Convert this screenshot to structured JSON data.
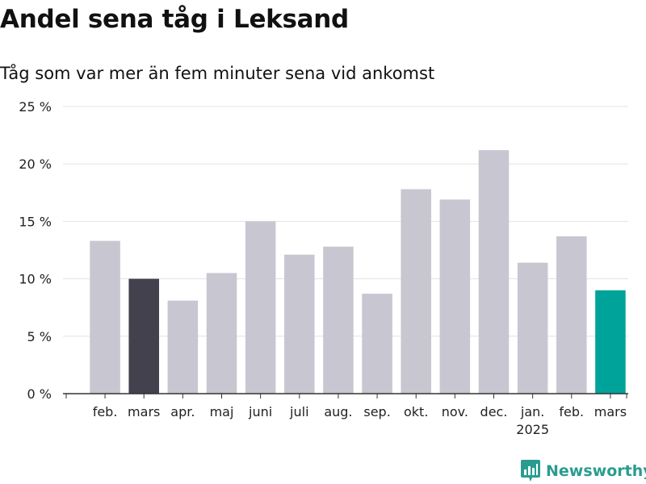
{
  "header": {
    "title": "Andel sena tåg i Leksand",
    "subtitle": "Tåg som var mer än fem minuter sena vid ankomst"
  },
  "logo": {
    "text": "Newsworthy",
    "icon": "newsworthy-chart-icon"
  },
  "colors": {
    "bar_default": "#c8c7d1",
    "bar_first_highlight": "#43414d",
    "bar_last_highlight": "#00a39a",
    "gridline": "#e3e3e3",
    "axis": "#333333",
    "brand": "#2a9c8f"
  },
  "chart_data": {
    "type": "bar",
    "categories": [
      "feb.",
      "mars",
      "apr.",
      "maj",
      "juni",
      "juli",
      "aug.",
      "sep.",
      "okt.",
      "nov.",
      "dec.",
      "jan.",
      "feb.",
      "mars"
    ],
    "year_labels": [
      {
        "index": 11,
        "text": "2025"
      }
    ],
    "values": [
      13.3,
      10.0,
      8.1,
      10.5,
      15.0,
      12.1,
      12.8,
      8.7,
      17.8,
      16.9,
      21.2,
      11.4,
      13.7,
      9.0
    ],
    "highlight": {
      "first_index": 1,
      "last_index": 13
    },
    "ylim": [
      0,
      25
    ],
    "yticks": [
      0,
      5,
      10,
      15,
      20,
      25
    ],
    "ytick_labels": [
      "0 %",
      "5 %",
      "10 %",
      "15 %",
      "20 %",
      "25 %"
    ],
    "grid": true,
    "xlabel": "",
    "ylabel": ""
  }
}
